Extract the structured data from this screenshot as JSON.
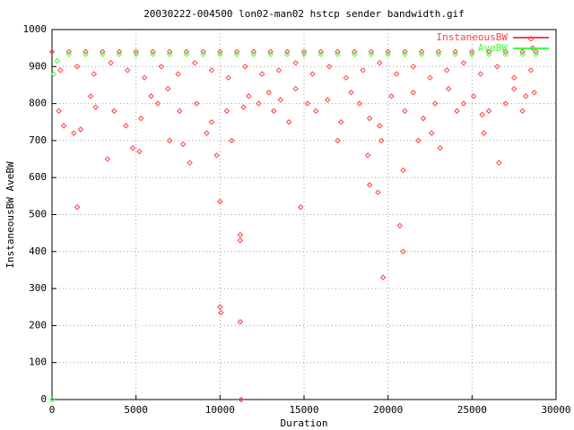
{
  "chart_data": {
    "type": "scatter",
    "title": "20030222-004500 lon02-man02 hstcp sender bandwidth.gif",
    "x_label": "Duration",
    "y_label": "InstaneousBW AveBW",
    "xlim": [
      0,
      30000
    ],
    "ylim": [
      0,
      1000
    ],
    "xticks": [
      0,
      5000,
      10000,
      15000,
      20000,
      25000,
      30000
    ],
    "yticks": [
      0,
      100,
      200,
      300,
      400,
      500,
      600,
      700,
      800,
      900,
      1000
    ],
    "grid": true,
    "legend": "top-right",
    "series": [
      {
        "name": "InstaneousBW",
        "color": "#ff4040",
        "x": [
          0,
          1000,
          2000,
          3000,
          4000,
          5000,
          6000,
          7000,
          8000,
          9000,
          10000,
          11000,
          12000,
          13000,
          14000,
          15000,
          16000,
          17000,
          18000,
          19000,
          20000,
          21000,
          22000,
          23000,
          24000,
          25000,
          26000,
          27000,
          28000,
          28800,
          500,
          1500,
          2500,
          3500,
          4500,
          5500,
          6500,
          7500,
          8500,
          9500,
          10500,
          11500,
          12500,
          13500,
          14500,
          15500,
          16500,
          17500,
          18500,
          19500,
          20500,
          21500,
          22500,
          23500,
          24500,
          25500,
          26500,
          27500,
          28500,
          1500,
          3300,
          4800,
          5200,
          7000,
          7800,
          8200,
          9200,
          9800,
          10000,
          10000,
          10050,
          10700,
          11200,
          11200,
          11200,
          11250,
          14800,
          13200,
          14100,
          17000,
          18800,
          18900,
          19400,
          19700,
          19600,
          20700,
          20900,
          20900,
          21800,
          22600,
          23100,
          24100,
          25600,
          25700,
          26600,
          28000,
          400,
          700,
          1300,
          1700,
          2300,
          2600,
          3700,
          4400,
          5300,
          5900,
          6300,
          6900,
          7600,
          8600,
          9500,
          10400,
          11400,
          11700,
          12300,
          12900,
          13600,
          14500,
          15200,
          15700,
          16400,
          17200,
          17800,
          18300,
          18900,
          19500,
          20200,
          21000,
          21500,
          22100,
          22800,
          23600,
          24500,
          25100,
          26000,
          27000,
          27500,
          28200,
          28700,
          28500,
          28600
        ],
        "values": [
          940,
          940,
          940,
          940,
          940,
          940,
          940,
          940,
          940,
          940,
          940,
          940,
          940,
          940,
          940,
          940,
          940,
          940,
          940,
          940,
          940,
          940,
          940,
          940,
          940,
          940,
          940,
          940,
          940,
          940,
          890,
          900,
          880,
          910,
          890,
          870,
          900,
          880,
          910,
          890,
          870,
          900,
          880,
          890,
          910,
          880,
          900,
          870,
          890,
          910,
          880,
          900,
          870,
          890,
          910,
          880,
          900,
          870,
          890,
          520,
          650,
          680,
          670,
          700,
          690,
          640,
          720,
          660,
          535,
          250,
          235,
          700,
          445,
          430,
          210,
          0,
          520,
          780,
          750,
          700,
          660,
          580,
          560,
          330,
          700,
          470,
          400,
          620,
          700,
          720,
          680,
          780,
          770,
          720,
          640,
          780,
          780,
          740,
          720,
          730,
          820,
          790,
          780,
          740,
          760,
          820,
          800,
          840,
          780,
          800,
          750,
          780,
          790,
          820,
          800,
          830,
          810,
          840,
          800,
          780,
          810,
          750,
          830,
          800,
          760,
          740,
          820,
          780,
          830,
          760,
          800,
          840,
          800,
          820,
          780,
          800,
          840,
          820,
          830,
          975,
          950
        ]
      },
      {
        "name": "AveBW",
        "color": "#40ff40",
        "x": [
          0,
          100,
          300,
          1000,
          2000,
          3000,
          4000,
          5000,
          6000,
          7000,
          8000,
          9000,
          10000,
          11000,
          12000,
          13000,
          14000,
          15000,
          16000,
          17000,
          18000,
          19000,
          20000,
          21000,
          22000,
          23000,
          24000,
          25000,
          26000,
          27000,
          28000,
          28800
        ],
        "values": [
          0,
          880,
          915,
          933,
          933,
          933,
          933,
          933,
          933,
          933,
          933,
          933,
          933,
          933,
          933,
          933,
          933,
          933,
          933,
          933,
          933,
          933,
          933,
          933,
          933,
          933,
          933,
          933,
          933,
          933,
          933,
          933
        ]
      }
    ]
  }
}
